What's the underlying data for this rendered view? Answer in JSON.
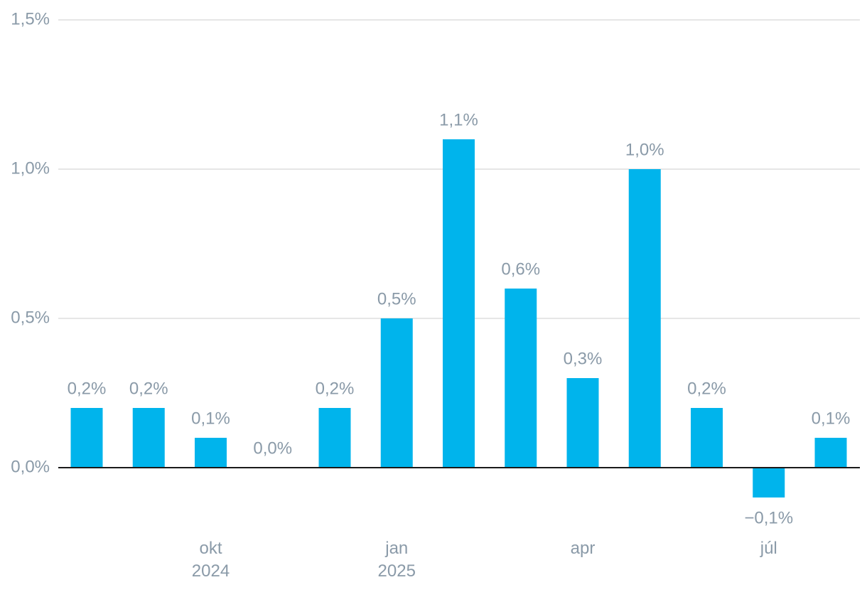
{
  "chart_data": {
    "type": "bar",
    "categories": [
      null,
      null,
      "okt\n2024",
      null,
      null,
      "jan\n2025",
      null,
      null,
      "apr",
      null,
      null,
      "júl",
      null
    ],
    "values": [
      0.2,
      0.2,
      0.1,
      0.0,
      0.2,
      0.5,
      1.1,
      0.6,
      0.3,
      1.0,
      0.2,
      -0.1,
      0.1
    ],
    "value_labels": [
      "0,2%",
      "0,2%",
      "0,1%",
      "0,0%",
      "0,2%",
      "0,5%",
      "1,1%",
      "0,6%",
      "0,3%",
      "1,0%",
      "0,2%",
      "−0,1%",
      "0,1%"
    ],
    "color": "#00b4ec",
    "ylim": [
      -0.2,
      1.5
    ],
    "yticks": [
      {
        "value": 0,
        "label": "0,0%"
      },
      {
        "value": 0.5,
        "label": "0,5%"
      },
      {
        "value": 1.0,
        "label": "1,0%"
      },
      {
        "value": 1.5,
        "label": "1,5%"
      }
    ],
    "grid": true
  }
}
